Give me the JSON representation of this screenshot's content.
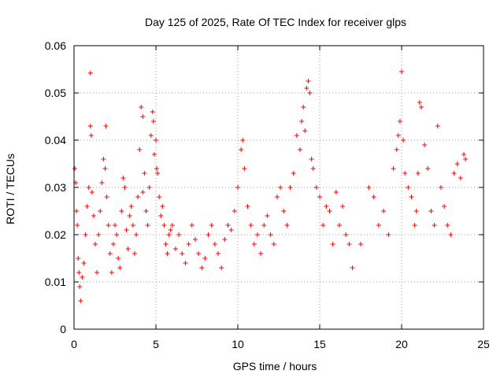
{
  "chart_data": {
    "type": "scatter",
    "title": "Day 125 of 2025, Rate Of TEC Index for receiver glps",
    "xlabel": "GPS time / hours",
    "ylabel": "ROTI / TECUs",
    "xlim": [
      0,
      25
    ],
    "ylim": [
      0,
      0.06
    ],
    "x_ticks": [
      0,
      5,
      10,
      15,
      20,
      25
    ],
    "x_tick_labels": [
      "0",
      "5",
      "10",
      "15",
      "20",
      "25"
    ],
    "y_ticks": [
      0,
      0.01,
      0.02,
      0.03,
      0.04,
      0.05,
      0.06
    ],
    "y_tick_labels": [
      "0",
      "0.01",
      "0.02",
      "0.03",
      "0.04",
      "0.05",
      "0.06"
    ],
    "grid": true,
    "marker": "plus",
    "color": "#ff0000",
    "series": [
      {
        "x": [
          0.05,
          0.1,
          0.15,
          0.2,
          0.25,
          0.3,
          0.35,
          0.4,
          0.5,
          0.6,
          0.7,
          0.8,
          0.9,
          1.0,
          1.0,
          1.05,
          1.1,
          1.2,
          1.3,
          1.4,
          1.5,
          1.6,
          1.7,
          1.8,
          1.9,
          1.95,
          2.0,
          2.1,
          2.2,
          2.3,
          2.4,
          2.5,
          2.6,
          2.7,
          2.8,
          2.9,
          3.0,
          3.1,
          3.2,
          3.3,
          3.4,
          3.5,
          3.6,
          3.7,
          3.8,
          3.9,
          4.0,
          4.1,
          4.2,
          4.2,
          4.3,
          4.4,
          4.5,
          4.6,
          4.7,
          4.8,
          4.85,
          4.9,
          5.0,
          5.05,
          5.1,
          5.2,
          5.3,
          5.4,
          5.5,
          5.6,
          5.7,
          5.8,
          5.9,
          6.0,
          6.2,
          6.4,
          6.6,
          6.8,
          7.0,
          7.2,
          7.4,
          7.6,
          7.8,
          8.0,
          8.2,
          8.4,
          8.6,
          8.8,
          9.0,
          9.2,
          9.4,
          9.6,
          9.8,
          10.0,
          10.2,
          10.3,
          10.4,
          10.6,
          10.8,
          11.0,
          11.2,
          11.4,
          11.6,
          11.8,
          12.0,
          12.2,
          12.4,
          12.6,
          12.8,
          13.0,
          13.2,
          13.4,
          13.6,
          13.8,
          13.9,
          14.0,
          14.1,
          14.2,
          14.3,
          14.4,
          14.5,
          14.6,
          14.8,
          15.0,
          15.2,
          15.4,
          15.6,
          15.8,
          16.0,
          16.2,
          16.4,
          16.6,
          16.8,
          17.0,
          17.5,
          18.0,
          18.3,
          18.6,
          18.9,
          19.2,
          19.5,
          19.7,
          19.8,
          19.9,
          20.0,
          20.1,
          20.2,
          20.4,
          20.6,
          20.8,
          20.9,
          21.0,
          21.1,
          21.2,
          21.4,
          21.6,
          21.8,
          22.0,
          22.2,
          22.4,
          22.6,
          22.8,
          23.0,
          23.2,
          23.4,
          23.6,
          23.8,
          23.9
        ],
        "y": [
          0.034,
          0.031,
          0.025,
          0.022,
          0.015,
          0.012,
          0.009,
          0.006,
          0.011,
          0.014,
          0.02,
          0.026,
          0.03,
          0.0542,
          0.043,
          0.041,
          0.029,
          0.024,
          0.018,
          0.012,
          0.02,
          0.025,
          0.031,
          0.036,
          0.034,
          0.043,
          0.028,
          0.022,
          0.016,
          0.012,
          0.018,
          0.022,
          0.02,
          0.015,
          0.013,
          0.025,
          0.032,
          0.03,
          0.021,
          0.017,
          0.024,
          0.026,
          0.022,
          0.016,
          0.02,
          0.028,
          0.038,
          0.047,
          0.045,
          0.029,
          0.033,
          0.025,
          0.022,
          0.03,
          0.041,
          0.046,
          0.044,
          0.037,
          0.04,
          0.034,
          0.033,
          0.028,
          0.024,
          0.026,
          0.022,
          0.018,
          0.016,
          0.02,
          0.021,
          0.022,
          0.017,
          0.02,
          0.016,
          0.014,
          0.018,
          0.022,
          0.019,
          0.016,
          0.013,
          0.015,
          0.02,
          0.022,
          0.018,
          0.016,
          0.013,
          0.019,
          0.022,
          0.021,
          0.025,
          0.03,
          0.038,
          0.04,
          0.034,
          0.026,
          0.022,
          0.018,
          0.02,
          0.016,
          0.022,
          0.024,
          0.02,
          0.018,
          0.028,
          0.03,
          0.025,
          0.022,
          0.03,
          0.033,
          0.041,
          0.038,
          0.044,
          0.047,
          0.042,
          0.051,
          0.0525,
          0.05,
          0.036,
          0.034,
          0.03,
          0.028,
          0.022,
          0.026,
          0.025,
          0.018,
          0.029,
          0.022,
          0.026,
          0.02,
          0.018,
          0.013,
          0.018,
          0.03,
          0.028,
          0.022,
          0.025,
          0.02,
          0.034,
          0.038,
          0.041,
          0.044,
          0.0545,
          0.04,
          0.033,
          0.03,
          0.028,
          0.022,
          0.025,
          0.033,
          0.048,
          0.047,
          0.039,
          0.034,
          0.025,
          0.022,
          0.043,
          0.03,
          0.026,
          0.022,
          0.02,
          0.033,
          0.035,
          0.032,
          0.037,
          0.036
        ]
      }
    ]
  }
}
